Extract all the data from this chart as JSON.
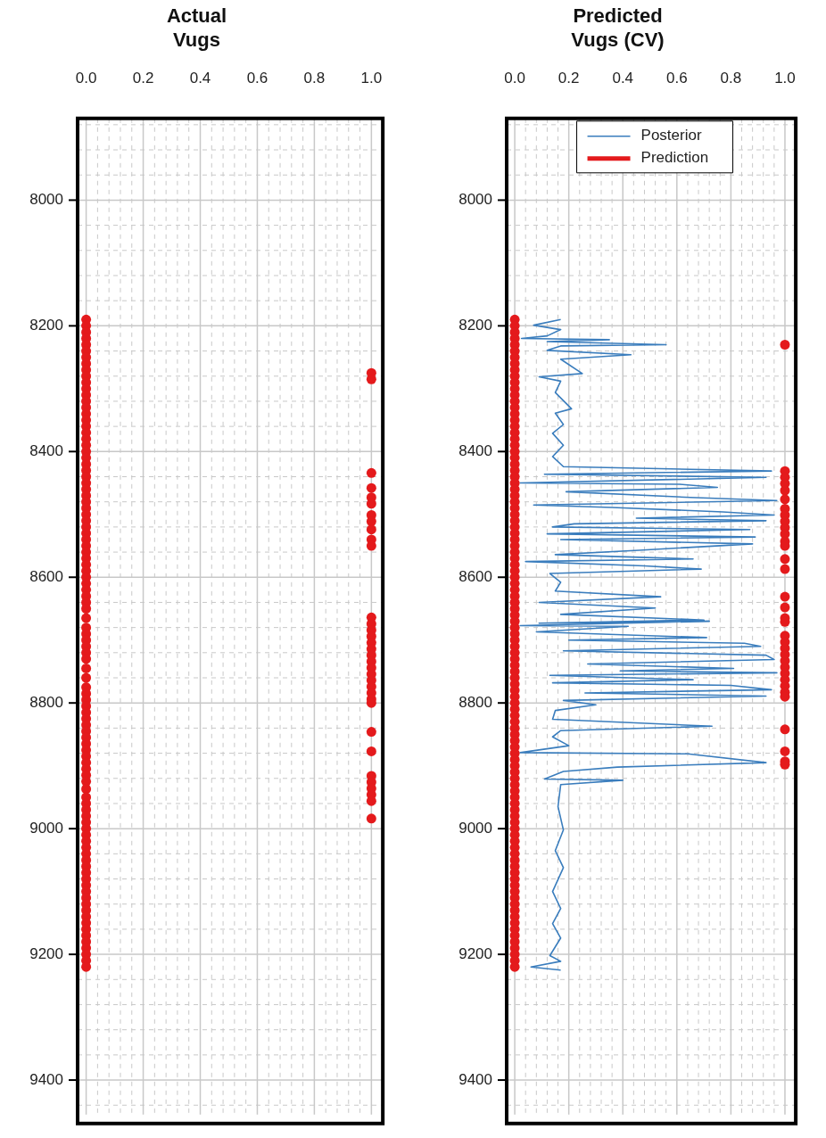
{
  "chart_data": [
    {
      "type": "scatter",
      "title": "Actual\nVugs",
      "xlim": [
        -0.03,
        1.04
      ],
      "ylim": [
        9455,
        7870
      ],
      "grid": true,
      "marker": "circle",
      "xticks": [
        {
          "value": 0,
          "label": "0.0"
        },
        {
          "value": 0.04,
          "label": null
        },
        {
          "value": 0.08,
          "label": null
        },
        {
          "value": 0.12,
          "label": null
        },
        {
          "value": 0.16,
          "label": null
        },
        {
          "value": 0.2,
          "label": "0.2"
        },
        {
          "value": 0.24,
          "label": null
        },
        {
          "value": 0.28,
          "label": null
        },
        {
          "value": 0.32,
          "label": null
        },
        {
          "value": 0.36,
          "label": null
        },
        {
          "value": 0.4,
          "label": "0.4"
        },
        {
          "value": 0.44,
          "label": null
        },
        {
          "value": 0.48,
          "label": null
        },
        {
          "value": 0.52,
          "label": null
        },
        {
          "value": 0.56,
          "label": null
        },
        {
          "value": 0.6,
          "label": "0.6"
        },
        {
          "value": 0.64,
          "label": null
        },
        {
          "value": 0.68,
          "label": null
        },
        {
          "value": 0.72,
          "label": null
        },
        {
          "value": 0.76,
          "label": null
        },
        {
          "value": 0.8,
          "label": "0.8"
        },
        {
          "value": 0.84,
          "label": null
        },
        {
          "value": 0.88,
          "label": null
        },
        {
          "value": 0.92,
          "label": null
        },
        {
          "value": 0.96,
          "label": null
        },
        {
          "value": 1,
          "label": "1.0"
        }
      ],
      "yticks": [
        {
          "value": 7880,
          "label": null
        },
        {
          "value": 7920,
          "label": null
        },
        {
          "value": 7960,
          "label": null
        },
        8000,
        {
          "value": 8040,
          "label": null
        },
        {
          "value": 8080,
          "label": null
        },
        {
          "value": 8120,
          "label": null
        },
        {
          "value": 8160,
          "label": null
        },
        8200,
        {
          "value": 8240,
          "label": null
        },
        {
          "value": 8280,
          "label": null
        },
        {
          "value": 8320,
          "label": null
        },
        {
          "value": 8360,
          "label": null
        },
        8400,
        {
          "value": 8440,
          "label": null
        },
        {
          "value": 8480,
          "label": null
        },
        {
          "value": 8520,
          "label": null
        },
        {
          "value": 8560,
          "label": null
        },
        8600,
        {
          "value": 8640,
          "label": null
        },
        {
          "value": 8680,
          "label": null
        },
        {
          "value": 8720,
          "label": null
        },
        {
          "value": 8760,
          "label": null
        },
        8800,
        {
          "value": 8840,
          "label": null
        },
        {
          "value": 8880,
          "label": null
        },
        {
          "value": 8920,
          "label": null
        },
        {
          "value": 8960,
          "label": null
        },
        9000,
        {
          "value": 9040,
          "label": null
        },
        {
          "value": 9080,
          "label": null
        },
        {
          "value": 9120,
          "label": null
        },
        {
          "value": 9160,
          "label": null
        },
        9200,
        {
          "value": 9240,
          "label": null
        },
        {
          "value": 9280,
          "label": null
        },
        {
          "value": 9320,
          "label": null
        },
        {
          "value": 9360,
          "label": null
        },
        9400,
        {
          "value": 9440,
          "label": null
        }
      ],
      "series": [
        {
          "color": "#e41a1c",
          "x": [
            0,
            0,
            0,
            0,
            0,
            0,
            0,
            0,
            0,
            0,
            0,
            0,
            0,
            0,
            0,
            0,
            0,
            0,
            0,
            0,
            0,
            0,
            0,
            0,
            0,
            0,
            0,
            0,
            0,
            0,
            0,
            0,
            0,
            0,
            0,
            0,
            0,
            0,
            0,
            0,
            0,
            0,
            0,
            0,
            0,
            0,
            0,
            0,
            0,
            0,
            0,
            0,
            0,
            0,
            0,
            0,
            0,
            0,
            0,
            0,
            0,
            0,
            0,
            0,
            0,
            0,
            0,
            0,
            0,
            0,
            0,
            0,
            0,
            0,
            0,
            0,
            0,
            0,
            0,
            0,
            0,
            0,
            0,
            0,
            0,
            0,
            0,
            0,
            0,
            0,
            0,
            0,
            0,
            0,
            0,
            0,
            0,
            0,
            0,
            0,
            0,
            1,
            1,
            1,
            1,
            1,
            1,
            1,
            1,
            1,
            1,
            1,
            1,
            1,
            1,
            1,
            1,
            1,
            1,
            1,
            1,
            1,
            1,
            1,
            1,
            1,
            1,
            1,
            1,
            1,
            1,
            1,
            1,
            1,
            1
          ],
          "values": [
            8190,
            8200,
            8210,
            8220,
            8230,
            8240,
            8250,
            8260,
            8270,
            8280,
            8290,
            8300,
            8310,
            8320,
            8330,
            8340,
            8350,
            8360,
            8370,
            8380,
            8390,
            8400,
            8410,
            8420,
            8430,
            8440,
            8450,
            8460,
            8470,
            8480,
            8490,
            8500,
            8510,
            8520,
            8530,
            8540,
            8550,
            8560,
            8570,
            8580,
            8590,
            8600,
            8610,
            8620,
            8630,
            8640,
            8650,
            8665,
            8680,
            8690,
            8700,
            8710,
            8720,
            8730,
            8745,
            8760,
            8775,
            8785,
            8795,
            8805,
            8815,
            8825,
            8835,
            8845,
            8855,
            8865,
            8875,
            8885,
            8895,
            8905,
            8915,
            8925,
            8937,
            8950,
            8960,
            8970,
            8980,
            8990,
            9000,
            9010,
            9020,
            9030,
            9040,
            9050,
            9060,
            9070,
            9080,
            9090,
            9100,
            9110,
            9120,
            9130,
            9140,
            9150,
            9160,
            9170,
            9180,
            9190,
            9200,
            9210,
            9220,
            8275,
            8285,
            8434,
            8458,
            8473,
            8483,
            8501,
            8511,
            8524,
            8540,
            8550,
            8664,
            8674,
            8684,
            8694,
            8704,
            8714,
            8724,
            8734,
            8744,
            8754,
            8764,
            8774,
            8784,
            8794,
            8800,
            8846,
            8877,
            8916,
            8926,
            8936,
            8946,
            8956,
            8984
          ]
        }
      ]
    },
    {
      "type": "scatter",
      "title": "Predicted\nVugs (CV)",
      "xlim": [
        -0.03,
        1.04
      ],
      "ylim": [
        9455,
        7870
      ],
      "grid": true,
      "marker": "circle",
      "legend": "top",
      "xticks": [
        {
          "value": 0,
          "label": "0.0"
        },
        {
          "value": 0.04,
          "label": null
        },
        {
          "value": 0.08,
          "label": null
        },
        {
          "value": 0.12,
          "label": null
        },
        {
          "value": 0.16,
          "label": null
        },
        {
          "value": 0.2,
          "label": "0.2"
        },
        {
          "value": 0.24,
          "label": null
        },
        {
          "value": 0.28,
          "label": null
        },
        {
          "value": 0.32,
          "label": null
        },
        {
          "value": 0.36,
          "label": null
        },
        {
          "value": 0.4,
          "label": "0.4"
        },
        {
          "value": 0.44,
          "label": null
        },
        {
          "value": 0.48,
          "label": null
        },
        {
          "value": 0.52,
          "label": null
        },
        {
          "value": 0.56,
          "label": null
        },
        {
          "value": 0.6,
          "label": "0.6"
        },
        {
          "value": 0.64,
          "label": null
        },
        {
          "value": 0.68,
          "label": null
        },
        {
          "value": 0.72,
          "label": null
        },
        {
          "value": 0.76,
          "label": null
        },
        {
          "value": 0.8,
          "label": "0.8"
        },
        {
          "value": 0.84,
          "label": null
        },
        {
          "value": 0.88,
          "label": null
        },
        {
          "value": 0.92,
          "label": null
        },
        {
          "value": 0.96,
          "label": null
        },
        {
          "value": 1,
          "label": "1.0"
        }
      ],
      "yticks": [
        {
          "value": 7880,
          "label": null
        },
        {
          "value": 7920,
          "label": null
        },
        {
          "value": 7960,
          "label": null
        },
        8000,
        {
          "value": 8040,
          "label": null
        },
        {
          "value": 8080,
          "label": null
        },
        {
          "value": 8120,
          "label": null
        },
        {
          "value": 8160,
          "label": null
        },
        8200,
        {
          "value": 8240,
          "label": null
        },
        {
          "value": 8280,
          "label": null
        },
        {
          "value": 8320,
          "label": null
        },
        {
          "value": 8360,
          "label": null
        },
        8400,
        {
          "value": 8440,
          "label": null
        },
        {
          "value": 8480,
          "label": null
        },
        {
          "value": 8520,
          "label": null
        },
        {
          "value": 8560,
          "label": null
        },
        8600,
        {
          "value": 8640,
          "label": null
        },
        {
          "value": 8680,
          "label": null
        },
        {
          "value": 8720,
          "label": null
        },
        {
          "value": 8760,
          "label": null
        },
        8800,
        {
          "value": 8840,
          "label": null
        },
        {
          "value": 8880,
          "label": null
        },
        {
          "value": 8920,
          "label": null
        },
        {
          "value": 8960,
          "label": null
        },
        9000,
        {
          "value": 9040,
          "label": null
        },
        {
          "value": 9080,
          "label": null
        },
        {
          "value": 9120,
          "label": null
        },
        {
          "value": 9160,
          "label": null
        },
        9200,
        {
          "value": 9240,
          "label": null
        },
        {
          "value": 9280,
          "label": null
        },
        {
          "value": 9320,
          "label": null
        },
        {
          "value": 9360,
          "label": null
        },
        9400,
        {
          "value": 9440,
          "label": null
        }
      ],
      "series": [
        {
          "name": "Posterior",
          "type": "line",
          "color": "#3a7dbd",
          "marker": "none",
          "x": [
            0.17,
            0.07,
            0.17,
            0.12,
            0.025,
            0.35,
            0.12,
            0.56,
            0.17,
            0.12,
            0.43,
            0.17,
            0.25,
            0.09,
            0.17,
            0.15,
            0.21,
            0.15,
            0.18,
            0.14,
            0.18,
            0.14,
            0.18,
            0.95,
            0.11,
            0.93,
            0.02,
            0.61,
            0.75,
            0.19,
            0.65,
            0.97,
            0.07,
            0.36,
            0.77,
            0.96,
            0.45,
            0.93,
            0.22,
            0.14,
            0.87,
            0.12,
            0.89,
            0.17,
            0.88,
            0.46,
            0.15,
            0.66,
            0.04,
            0.48,
            0.69,
            0.13,
            0.17,
            0.15,
            0.54,
            0.09,
            0.52,
            0.17,
            0.7,
            0.09,
            0.72,
            0.02,
            0.42,
            0.08,
            0.71,
            0.2,
            0.85,
            0.91,
            0.18,
            0.93,
            0.96,
            0.27,
            0.81,
            0.39,
            0.97,
            0.13,
            0.66,
            0.14,
            0.8,
            0.95,
            0.26,
            0.93,
            0.18,
            0.3,
            0.15,
            0.14,
            0.73,
            0.17,
            0.14,
            0.2,
            0.02,
            0.64,
            0.93,
            0.38,
            0.18,
            0.11,
            0.4,
            0.17,
            0.16,
            0.18,
            0.15,
            0.18,
            0.14,
            0.17,
            0.14,
            0.17,
            0.13,
            0.17,
            0.06,
            0.17
          ],
          "values": [
            8190,
            8199,
            8206,
            8216,
            8220,
            8222,
            8225,
            8230,
            8232,
            8239,
            8246,
            8253,
            8276,
            8281,
            8288,
            8306,
            8332,
            8339,
            8357,
            8371,
            8390,
            8408,
            8424,
            8431,
            8436,
            8441,
            8450,
            8452,
            8457,
            8464,
            8473,
            8478,
            8485,
            8489,
            8496,
            8501,
            8506,
            8510,
            8515,
            8520,
            8524,
            8531,
            8536,
            8540,
            8547,
            8557,
            8564,
            8571,
            8575,
            8582,
            8587,
            8594,
            8608,
            8622,
            8631,
            8640,
            8649,
            8659,
            8668,
            8673,
            8670,
            8677,
            8678,
            8687,
            8696,
            8700,
            8705,
            8710,
            8717,
            8724,
            8731,
            8738,
            8745,
            8749,
            8752,
            8756,
            8763,
            8768,
            8772,
            8779,
            8784,
            8789,
            8796,
            8803,
            8812,
            8826,
            8837,
            8844,
            8854,
            8868,
            8879,
            8881,
            8895,
            8902,
            8909,
            8921,
            8923,
            8930,
            8965,
            9002,
            9035,
            9062,
            9100,
            9127,
            9151,
            9174,
            9202,
            9211,
            9220,
            9225
          ]
        },
        {
          "name": "Prediction",
          "color": "#e41a1c",
          "x": [
            0,
            0,
            0,
            0,
            0,
            0,
            0,
            0,
            0,
            0,
            0,
            0,
            0,
            0,
            0,
            0,
            0,
            0,
            0,
            0,
            0,
            0,
            0,
            0,
            0,
            0,
            0,
            0,
            0,
            0,
            0,
            0,
            0,
            0,
            0,
            0,
            0,
            0,
            0,
            0,
            0,
            0,
            0,
            0,
            0,
            0,
            0,
            0,
            0,
            0,
            0,
            0,
            0,
            0,
            0,
            0,
            0,
            0,
            0,
            0,
            0,
            0,
            0,
            0,
            0,
            0,
            0,
            0,
            0,
            0,
            0,
            0,
            0,
            0,
            0,
            0,
            0,
            0,
            0,
            0,
            0,
            0,
            0,
            0,
            0,
            0,
            0,
            0,
            0,
            0,
            0,
            0,
            0,
            0,
            0,
            0,
            0,
            0,
            0,
            0,
            0,
            0,
            0,
            0,
            1,
            1,
            1,
            1,
            1,
            1,
            1,
            1,
            1,
            1,
            1,
            1,
            1,
            1,
            1,
            1,
            1,
            1,
            1,
            1,
            1,
            1,
            1,
            1,
            1,
            1,
            1,
            1,
            1,
            1,
            1,
            1,
            1,
            1
          ],
          "values": [
            8190,
            8200,
            8210,
            8220,
            8230,
            8240,
            8250,
            8260,
            8270,
            8280,
            8290,
            8300,
            8310,
            8320,
            8330,
            8340,
            8350,
            8360,
            8370,
            8380,
            8390,
            8400,
            8410,
            8420,
            8430,
            8440,
            8450,
            8460,
            8470,
            8480,
            8490,
            8500,
            8510,
            8520,
            8530,
            8540,
            8550,
            8560,
            8570,
            8580,
            8590,
            8600,
            8610,
            8620,
            8630,
            8640,
            8650,
            8660,
            8670,
            8680,
            8690,
            8700,
            8710,
            8720,
            8730,
            8740,
            8750,
            8760,
            8770,
            8780,
            8790,
            8800,
            8810,
            8820,
            8830,
            8840,
            8850,
            8860,
            8870,
            8880,
            8890,
            8900,
            8910,
            8920,
            8930,
            8940,
            8950,
            8960,
            8970,
            8980,
            8990,
            9000,
            9010,
            9020,
            9030,
            9040,
            9050,
            9060,
            9070,
            9080,
            9090,
            9100,
            9110,
            9120,
            9130,
            9140,
            9150,
            9160,
            9170,
            9180,
            9190,
            9200,
            9210,
            9220,
            8230,
            8431,
            8441,
            8451,
            8462,
            8476,
            8491,
            8501,
            8511,
            8521,
            8531,
            8543,
            8550,
            8571,
            8587,
            8631,
            8648,
            8665,
            8671,
            8693,
            8703,
            8713,
            8723,
            8733,
            8743,
            8753,
            8763,
            8773,
            8783,
            8790,
            8842,
            8877,
            8893,
            8898
          ]
        }
      ]
    }
  ]
}
